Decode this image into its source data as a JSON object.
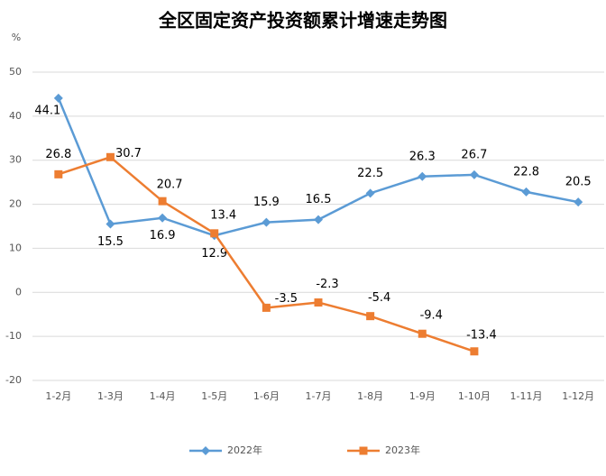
{
  "chart_data": {
    "type": "line",
    "title": "全区固定资产投资额累计增速走势图",
    "y_label": "%",
    "categories": [
      "1-2月",
      "1-3月",
      "1-4月",
      "1-5月",
      "1-6月",
      "1-7月",
      "1-8月",
      "1-9月",
      "1-10月",
      "1-11月",
      "1-12月"
    ],
    "series": [
      {
        "name": "2022年",
        "color": "#5b9bd5",
        "marker": "diamond",
        "values": [
          44.1,
          15.5,
          16.9,
          12.9,
          15.9,
          16.5,
          22.5,
          26.3,
          26.7,
          22.8,
          20.5
        ]
      },
      {
        "name": "2023年",
        "color": "#ed7d31",
        "marker": "square",
        "values": [
          26.8,
          30.7,
          20.7,
          13.4,
          -3.5,
          -2.3,
          -5.4,
          -9.4,
          -13.4,
          null,
          null
        ]
      }
    ],
    "ylim": [
      -20,
      50
    ],
    "yticks": [
      -20,
      -10,
      0,
      10,
      20,
      30,
      40,
      50
    ],
    "grid": true,
    "legend": "bottom"
  }
}
